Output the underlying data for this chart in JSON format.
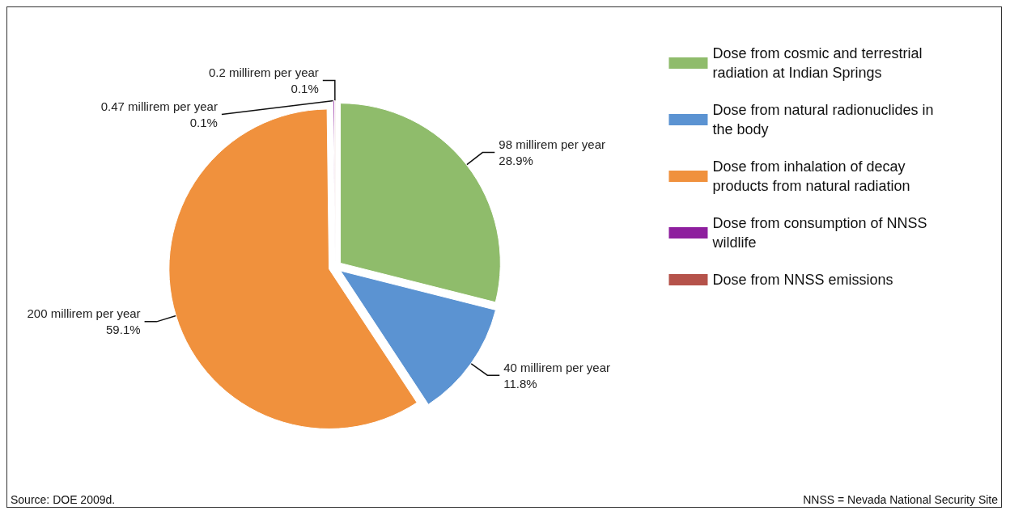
{
  "chart_data": {
    "type": "pie",
    "categories": [
      "Dose from cosmic and terrestrial radiation at Indian Springs",
      "Dose from natural radionuclides in the body",
      "Dose from inhalation of decay products from natural radiation",
      "Dose from consumption of NNSS wildlife",
      "Dose from NNSS emissions"
    ],
    "values": [
      98,
      40,
      200,
      0.47,
      0.2
    ],
    "colors": [
      "#8fbc6b",
      "#5b93d2",
      "#f0913d",
      "#8e1f9e",
      "#b5524a"
    ],
    "value_labels": [
      "98 millirem per year\n28.9%",
      "40 millirem per year\n11.8%",
      "200 millirem per year\n59.1%",
      "0.47 millirem per year\n0.1%",
      "0.2 millirem per year\n0.1%"
    ],
    "legend": "top right",
    "annotations": [
      "Source: DOE 2009d.",
      "NNSS = Nevada National Security Site"
    ]
  }
}
